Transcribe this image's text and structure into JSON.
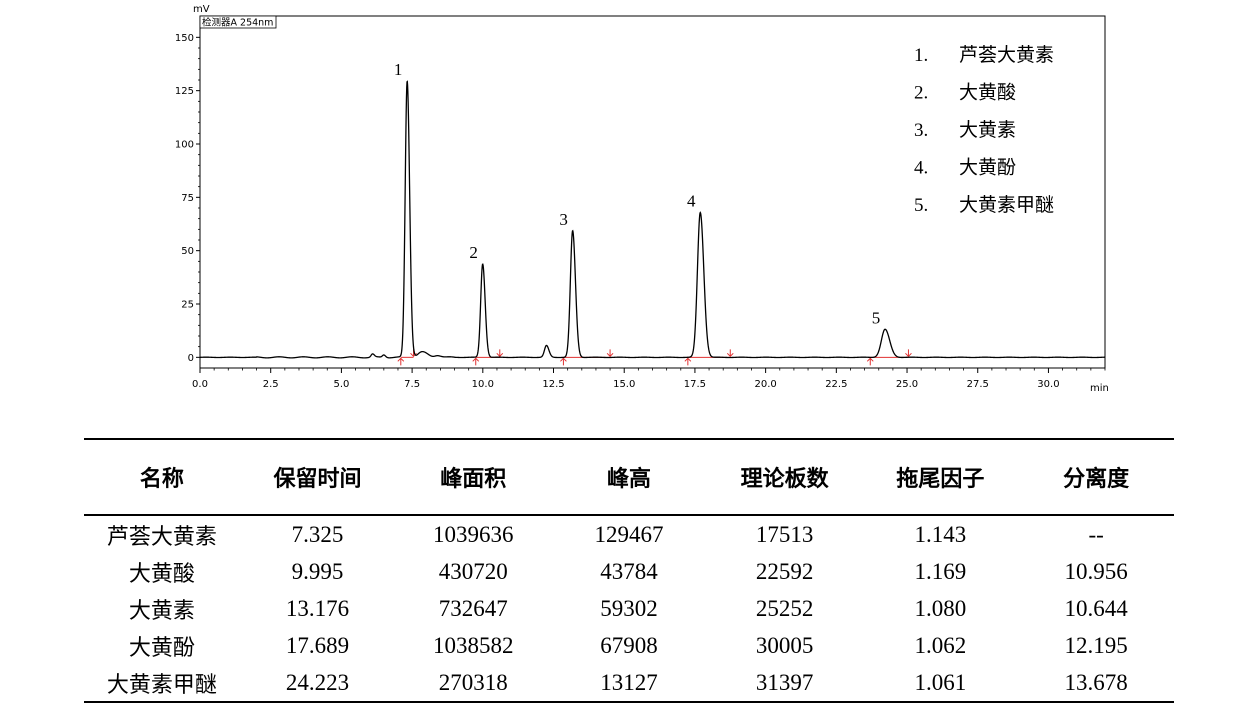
{
  "chart_data": {
    "type": "line",
    "y_unit": "mV",
    "x_unit": "min",
    "detector_label": "检测器A 254nm",
    "xlim": [
      0,
      32
    ],
    "ylim": [
      -5,
      160
    ],
    "x_ticks": [
      "0.0",
      "2.5",
      "5.0",
      "7.5",
      "10.0",
      "12.5",
      "15.0",
      "17.5",
      "20.0",
      "22.5",
      "25.0",
      "27.5",
      "30.0"
    ],
    "y_ticks": [
      "0",
      "25",
      "50",
      "75",
      "100",
      "125",
      "150"
    ],
    "peaks": [
      {
        "label": "1",
        "rt": 7.325,
        "height": 129.5,
        "sigma": 0.07
      },
      {
        "label": "2",
        "rt": 9.995,
        "height": 43.8,
        "sigma": 0.07
      },
      {
        "label": "3",
        "rt": 13.176,
        "height": 59.3,
        "sigma": 0.08
      },
      {
        "label": "4",
        "rt": 17.689,
        "height": 67.9,
        "sigma": 0.1
      },
      {
        "label": "5",
        "rt": 24.223,
        "height": 13.1,
        "sigma": 0.13
      }
    ],
    "minor_peaks": [
      {
        "rt": 6.1,
        "height": 1.5,
        "sigma": 0.05
      },
      {
        "rt": 6.5,
        "height": 1.2,
        "sigma": 0.05
      },
      {
        "rt": 7.85,
        "height": 2.5,
        "sigma": 0.15
      },
      {
        "rt": 8.4,
        "height": 1.0,
        "sigma": 0.1
      },
      {
        "rt": 12.25,
        "height": 5.5,
        "sigma": 0.07
      }
    ],
    "integration_markers": [
      7.1,
      7.55,
      9.75,
      10.6,
      12.85,
      14.5,
      17.25,
      18.75,
      23.7,
      25.05
    ],
    "legend": [
      {
        "num": "1.",
        "name": "芦荟大黄素"
      },
      {
        "num": "2.",
        "name": "大黄酸"
      },
      {
        "num": "3.",
        "name": "大黄素"
      },
      {
        "num": "4.",
        "name": "大黄酚"
      },
      {
        "num": "5.",
        "name": "大黄素甲醚"
      }
    ]
  },
  "table": {
    "headers": [
      "名称",
      "保留时间",
      "峰面积",
      "峰高",
      "理论板数",
      "拖尾因子",
      "分离度"
    ],
    "rows": [
      [
        "芦荟大黄素",
        "7.325",
        "1039636",
        "129467",
        "17513",
        "1.143",
        "--"
      ],
      [
        "大黄酸",
        "9.995",
        "430720",
        "43784",
        "22592",
        "1.169",
        "10.956"
      ],
      [
        "大黄素",
        "13.176",
        "732647",
        "59302",
        "25252",
        "1.080",
        "10.644"
      ],
      [
        "大黄酚",
        "17.689",
        "1038582",
        "67908",
        "30005",
        "1.062",
        "12.195"
      ],
      [
        "大黄素甲醚",
        "24.223",
        "270318",
        "13127",
        "31397",
        "1.061",
        "13.678"
      ]
    ]
  },
  "colors": {
    "trace": "#000000",
    "integration_marker": "#e03030",
    "baseline": "#e03030"
  }
}
